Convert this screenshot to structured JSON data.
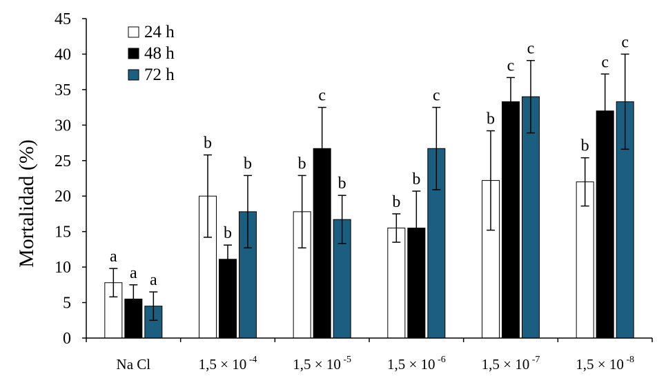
{
  "chart_data": {
    "type": "bar",
    "ylabel": "Mortalidad (%)",
    "ylim": [
      0,
      45
    ],
    "yticks": [
      0,
      5,
      10,
      15,
      20,
      25,
      30,
      35,
      40,
      45
    ],
    "legend_position": "top-left",
    "categories": [
      {
        "base": "Na Cl",
        "exp": ""
      },
      {
        "base": "1,5 × 10",
        "exp": "-4"
      },
      {
        "base": "1,5 × 10",
        "exp": "-5"
      },
      {
        "base": "1,5 × 10",
        "exp": "-6"
      },
      {
        "base": "1,5 × 10",
        "exp": "-7"
      },
      {
        "base": "1,5 × 10",
        "exp": "-8"
      }
    ],
    "series": [
      {
        "name": "24 h",
        "color": "#ffffff",
        "values": [
          7.8,
          20.0,
          17.8,
          15.5,
          22.2,
          22.0
        ],
        "errors": [
          2.0,
          5.8,
          5.1,
          2.0,
          7.0,
          3.4
        ],
        "labels": [
          "a",
          "b",
          "b",
          "b",
          "b",
          "b"
        ]
      },
      {
        "name": "48 h",
        "color": "#000000",
        "values": [
          5.5,
          11.1,
          26.7,
          15.5,
          33.3,
          32.0
        ],
        "errors": [
          2.0,
          2.0,
          5.8,
          5.2,
          3.4,
          5.2
        ],
        "labels": [
          "a",
          "b",
          "c",
          "b",
          "c",
          "c"
        ]
      },
      {
        "name": "72 h",
        "color": "#1b5e80",
        "values": [
          4.5,
          17.8,
          16.7,
          26.7,
          34.0,
          33.3
        ],
        "errors": [
          2.0,
          5.1,
          3.4,
          5.8,
          5.1,
          6.7
        ],
        "labels": [
          "a",
          "b",
          "b",
          "c",
          "c",
          "c"
        ]
      }
    ]
  }
}
